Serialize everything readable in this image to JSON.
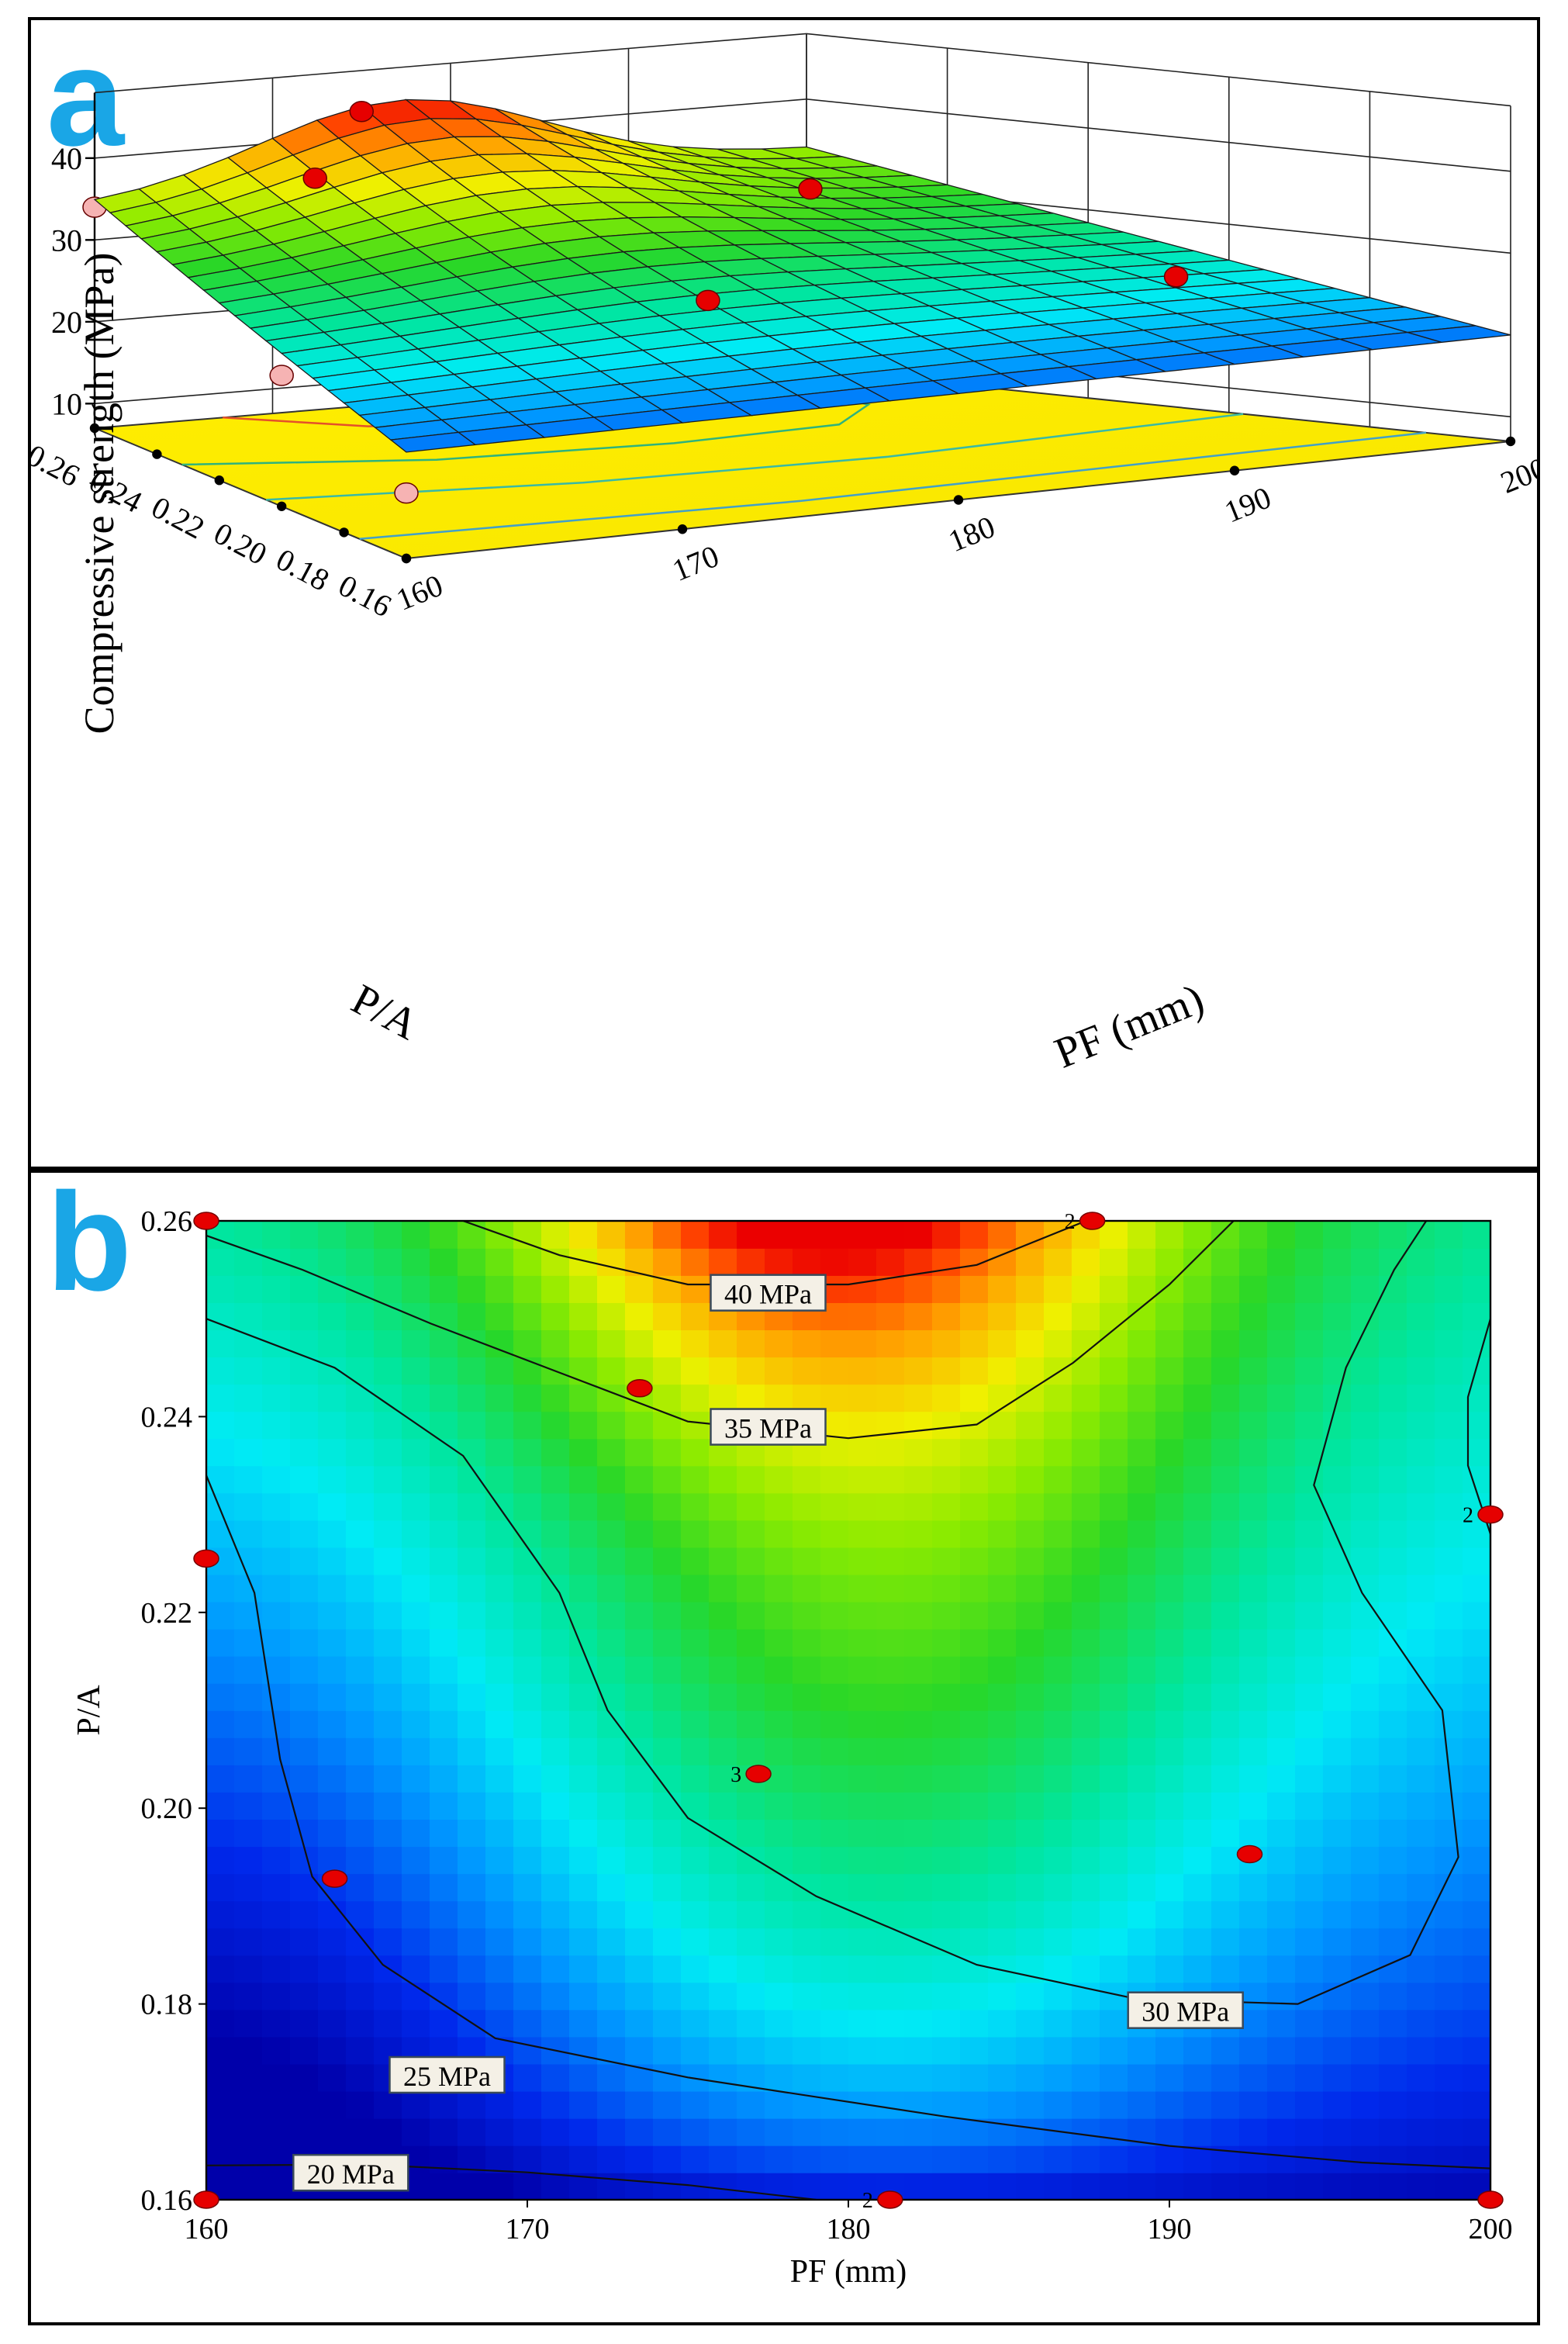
{
  "chart_data": [
    {
      "type": "surface3d",
      "panel_label": "a",
      "zlabel": "Compressive strength (MPa)",
      "xlabel": "PF (mm)",
      "ylabel": "P/A",
      "x_range": [
        160,
        200
      ],
      "y_range": [
        0.16,
        0.26
      ],
      "x_ticks": [
        "160",
        "170",
        "180",
        "190",
        "200"
      ],
      "y_ticks": [
        "0.16",
        "0.18",
        "0.20",
        "0.22",
        "0.24",
        "0.26"
      ],
      "z_ticks": [
        "10",
        "20",
        "30",
        "40"
      ],
      "grid_x_values": [
        160,
        162.5,
        165,
        167.5,
        170,
        172.5,
        175,
        177.5,
        180,
        182.5,
        185,
        187.5,
        190,
        192.5,
        195,
        197.5,
        200
      ],
      "grid_y_values": [
        0.16,
        0.165,
        0.17,
        0.175,
        0.18,
        0.185,
        0.19,
        0.195,
        0.2,
        0.205,
        0.21,
        0.215,
        0.22,
        0.225,
        0.23,
        0.235,
        0.24,
        0.245,
        0.25,
        0.255,
        0.26
      ],
      "design_points_above": [
        {
          "x": 175,
          "y": 0.26,
          "z": 43
        },
        {
          "x": 168,
          "y": 0.24,
          "z": 39
        },
        {
          "x": 190,
          "y": 0.23,
          "z": 34
        },
        {
          "x": 178,
          "y": 0.2,
          "z": 27
        },
        {
          "x": 195,
          "y": 0.19,
          "z": 26
        }
      ],
      "design_points_below": [
        {
          "x": 160,
          "y": 0.26,
          "z": 34
        },
        {
          "x": 160,
          "y": 0.2,
          "z": 23
        },
        {
          "x": 200,
          "y": 0.2,
          "z": 24
        },
        {
          "x": 160,
          "y": 0.16,
          "z": 15
        }
      ]
    },
    {
      "type": "contour",
      "panel_label": "b",
      "xlabel": "PF (mm)",
      "ylabel": "P/A",
      "x_range": [
        160,
        200
      ],
      "y_range": [
        0.16,
        0.26
      ],
      "x_ticks": [
        "160",
        "170",
        "180",
        "190",
        "200"
      ],
      "y_ticks": [
        "0.16",
        "0.18",
        "0.20",
        "0.22",
        "0.24",
        "0.26"
      ],
      "contour_levels": [
        20,
        25,
        30,
        35,
        40
      ],
      "contour_labels": [
        {
          "text": "40 MPa",
          "x": 177.5,
          "y": 0.2525
        },
        {
          "text": "35 MPa",
          "x": 177.5,
          "y": 0.2388
        },
        {
          "text": "30 MPa",
          "x": 190.5,
          "y": 0.1792
        },
        {
          "text": "25 MPa",
          "x": 167.5,
          "y": 0.1726
        },
        {
          "text": "20 MPa",
          "x": 164.5,
          "y": 0.1626
        }
      ],
      "design_points": [
        {
          "x": 160,
          "y": 0.26
        },
        {
          "x": 187.6,
          "y": 0.26,
          "label": "2"
        },
        {
          "x": 173.5,
          "y": 0.2429
        },
        {
          "x": 160,
          "y": 0.2255
        },
        {
          "x": 200,
          "y": 0.23,
          "label": "2"
        },
        {
          "x": 177.2,
          "y": 0.2035,
          "label": "3"
        },
        {
          "x": 164,
          "y": 0.1928
        },
        {
          "x": 192.5,
          "y": 0.1953
        },
        {
          "x": 160,
          "y": 0.16
        },
        {
          "x": 181.3,
          "y": 0.16,
          "label": "2"
        },
        {
          "x": 200,
          "y": 0.16
        }
      ]
    }
  ]
}
